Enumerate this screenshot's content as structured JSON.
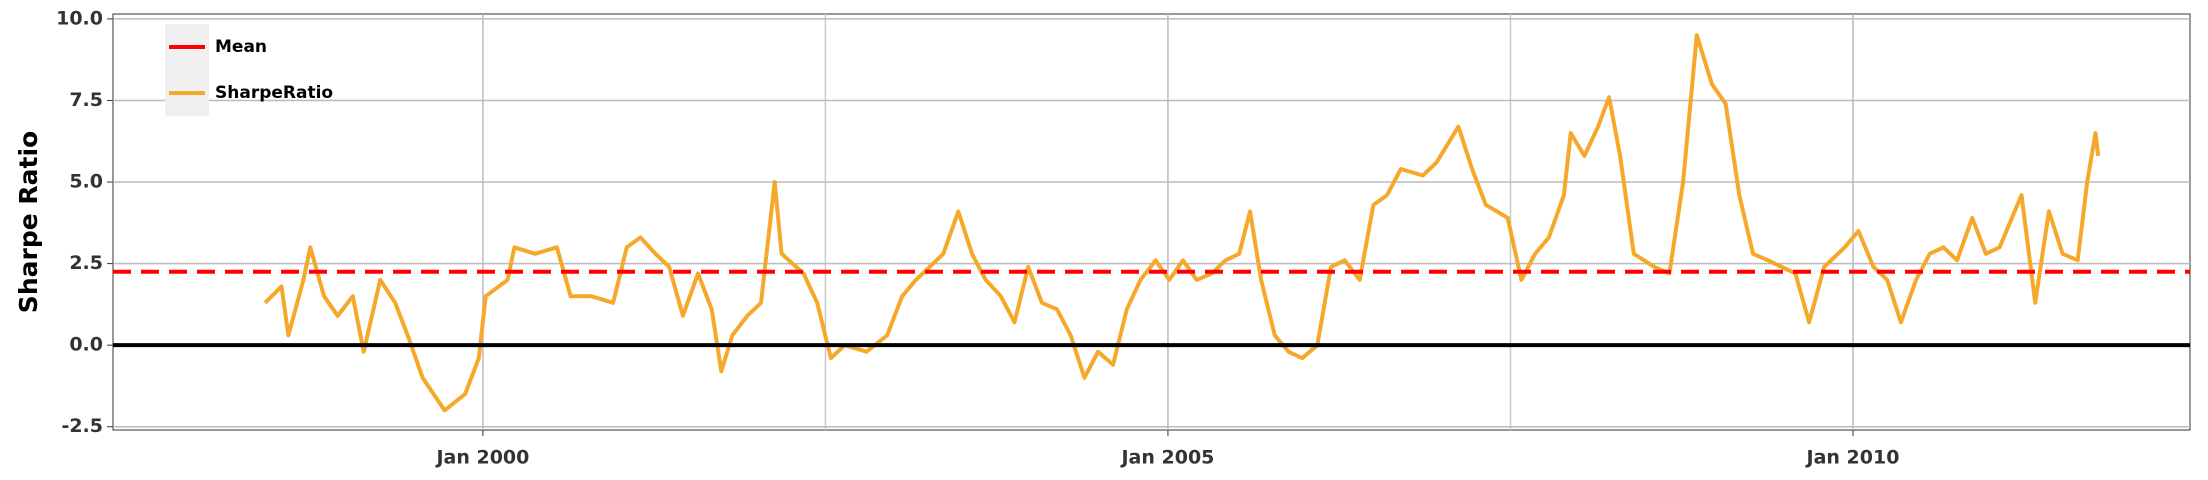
{
  "chart_data": {
    "type": "line",
    "y_label": "Sharpe Ratio",
    "x": [
      1998.41,
      1998.53,
      1998.58,
      1998.69,
      1998.74,
      1998.84,
      1998.94,
      1999.05,
      1999.13,
      1999.25,
      1999.36,
      1999.46,
      1999.56,
      1999.72,
      1999.87,
      1999.97,
      2000.02,
      2000.18,
      2000.23,
      2000.38,
      2000.54,
      2000.64,
      2000.79,
      2000.95,
      2001.05,
      2001.15,
      2001.26,
      2001.36,
      2001.46,
      2001.57,
      2001.67,
      2001.74,
      2001.82,
      2001.93,
      2002.03,
      2002.13,
      2002.18,
      2002.34,
      2002.44,
      2002.54,
      2002.64,
      2002.8,
      2002.95,
      2003.06,
      2003.16,
      2003.26,
      2003.36,
      2003.47,
      2003.57,
      2003.67,
      2003.78,
      2003.88,
      2003.98,
      2004.08,
      2004.19,
      2004.29,
      2004.39,
      2004.49,
      2004.6,
      2004.7,
      2004.8,
      2004.91,
      2005.01,
      2005.11,
      2005.21,
      2005.32,
      2005.42,
      2005.52,
      2005.6,
      2005.68,
      2005.78,
      2005.88,
      2005.98,
      2006.09,
      2006.19,
      2006.29,
      2006.4,
      2006.5,
      2006.6,
      2006.7,
      2006.86,
      2006.96,
      2007.12,
      2007.22,
      2007.32,
      2007.48,
      2007.58,
      2007.68,
      2007.78,
      2007.89,
      2007.94,
      2008.04,
      2008.14,
      2008.22,
      2008.3,
      2008.4,
      2008.55,
      2008.66,
      2008.76,
      2008.86,
      2008.97,
      2009.07,
      2009.17,
      2009.27,
      2009.38,
      2009.48,
      2009.58,
      2009.68,
      2009.79,
      2009.94,
      2010.04,
      2010.15,
      2010.25,
      2010.35,
      2010.46,
      2010.56,
      2010.66,
      2010.76,
      2010.87,
      2010.97,
      2011.07,
      2011.23,
      2011.33,
      2011.43,
      2011.53,
      2011.64,
      2011.71,
      2011.77,
      2011.79
    ],
    "series": [
      {
        "name": "SharpeRatio",
        "color": "#f5a82a",
        "values": [
          1.3,
          1.8,
          0.3,
          2.0,
          3.0,
          1.5,
          0.9,
          1.5,
          -0.2,
          2.0,
          1.3,
          0.2,
          -1.0,
          -2.0,
          -1.5,
          -0.4,
          1.5,
          2.0,
          3.0,
          2.8,
          3.0,
          1.5,
          1.5,
          1.3,
          3.0,
          3.3,
          2.8,
          2.4,
          0.9,
          2.2,
          1.1,
          -0.8,
          0.3,
          0.9,
          1.3,
          5.0,
          2.8,
          2.2,
          1.3,
          -0.4,
          0.0,
          -0.2,
          0.3,
          1.5,
          2.0,
          2.4,
          2.8,
          4.1,
          2.8,
          2.0,
          1.5,
          0.7,
          2.4,
          1.3,
          1.1,
          0.3,
          -1.0,
          -0.2,
          -0.6,
          1.1,
          2.0,
          2.6,
          2.0,
          2.6,
          2.0,
          2.2,
          2.6,
          2.8,
          4.1,
          2.0,
          0.3,
          -0.2,
          -0.4,
          0.0,
          2.4,
          2.6,
          2.0,
          4.3,
          4.6,
          5.4,
          5.2,
          5.6,
          6.7,
          5.4,
          4.3,
          3.9,
          2.0,
          2.8,
          3.3,
          4.6,
          6.5,
          5.8,
          6.7,
          7.6,
          5.8,
          2.8,
          2.4,
          2.2,
          5.0,
          9.5,
          8.0,
          7.4,
          4.6,
          2.8,
          2.6,
          2.4,
          2.2,
          0.7,
          2.4,
          3.0,
          3.5,
          2.4,
          2.0,
          0.7,
          2.0,
          2.8,
          3.0,
          2.6,
          3.9,
          2.8,
          3.0,
          4.6,
          1.3,
          4.1,
          2.8,
          2.6,
          5.0,
          6.5,
          5.8
        ]
      }
    ],
    "hlines": [
      {
        "name": "Mean",
        "value": 2.25,
        "color": "#ff0000",
        "style": "dashed"
      },
      {
        "value": 0,
        "color": "#000000",
        "style": "solid"
      }
    ],
    "xlim": [
      1997.3,
      2012.46
    ],
    "xticks": [
      {
        "value": 2000,
        "label": "Jan 2000"
      },
      {
        "value": 2005,
        "label": "Jan 2005"
      },
      {
        "value": 2010,
        "label": "Jan 2010"
      }
    ],
    "xminor": [
      2002.5,
      2007.5
    ],
    "ylim": [
      -2.6,
      10.15
    ],
    "yticks": [
      {
        "value": -2.5,
        "label": "-2.5"
      },
      {
        "value": 0,
        "label": "0.0"
      },
      {
        "value": 2.5,
        "label": "2.5"
      },
      {
        "value": 5,
        "label": "5.0"
      },
      {
        "value": 7.5,
        "label": "7.5"
      },
      {
        "value": 10,
        "label": "10.0"
      }
    ],
    "grid": true,
    "legend": "top-left"
  }
}
